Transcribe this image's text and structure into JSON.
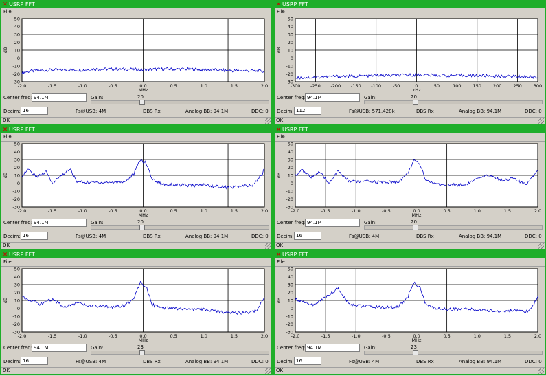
{
  "colors": {
    "titlebar": "#1fae2a",
    "trace": "#0000c8",
    "grid": "#000000"
  },
  "icons": {
    "close": "close-icon",
    "resize": "resize-grip-icon"
  },
  "windows": [
    {
      "title": "USRP FFT",
      "menu": "File",
      "center_freq_label": "Center freq:",
      "center_freq": "94.1M",
      "gain_label": "Gain:",
      "gain": "20",
      "decim_label": "Decim:",
      "decim": "16",
      "fs": "Fs@USB: 4M",
      "ddc_mode": "DBS Rx",
      "analog_bb": "Analog BB: 94.1M",
      "ddc": "DDC: 0",
      "status": "OK",
      "chart_data": {
        "type": "line",
        "xlabel": "MHz",
        "ylabel": "dB",
        "xlim": [
          -2.0,
          2.0
        ],
        "ylim": [
          -30,
          50
        ],
        "xticks": [
          "-2.0",
          "-1.5",
          "-1.0",
          "-0.5",
          "0.0",
          "0.5",
          "1.0",
          "1.5",
          "2.0"
        ],
        "yticks": [
          "50",
          "40",
          "30",
          "20",
          "10",
          "0",
          "-10",
          "-20",
          "-30"
        ],
        "x_gridlines": [
          0.0,
          1.4
        ],
        "y_gridlines": [
          30,
          10
        ],
        "series": [
          {
            "x": [
              -2.0,
              -1.8,
              -1.5,
              -1.2,
              -1.0,
              -0.8,
              -0.5,
              -0.2,
              0.0,
              0.2,
              0.5,
              0.8,
              1.0,
              1.2,
              1.5,
              1.8,
              2.0
            ],
            "values": [
              -18,
              -16,
              -15,
              -15,
              -15,
              -14,
              -14,
              -14,
              -15,
              -14,
              -14,
              -14,
              -15,
              -15,
              -16,
              -16,
              -17
            ]
          }
        ]
      }
    },
    {
      "title": "USRP FFT",
      "menu": "File",
      "center_freq_label": "Center freq:",
      "center_freq": "94.1M",
      "gain_label": "Gain:",
      "gain": "20",
      "decim_label": "Decim:",
      "decim": "112",
      "fs": "Fs@USB: 571.428k",
      "ddc_mode": "DBS Rx",
      "analog_bb": "Analog BB: 94.1M",
      "ddc": "DDC: 0",
      "status": "OK",
      "chart_data": {
        "type": "line",
        "xlabel": "kHz",
        "ylabel": "dB",
        "xlim": [
          -300,
          300
        ],
        "ylim": [
          -30,
          50
        ],
        "xticks": [
          "-300",
          "-250",
          "-200",
          "-150",
          "-100",
          "-50",
          "0",
          "50",
          "100",
          "150",
          "200",
          "250",
          "300"
        ],
        "yticks": [
          "50",
          "40",
          "30",
          "20",
          "10",
          "0",
          "-10",
          "-20",
          "-30"
        ],
        "x_gridlines": [
          -250,
          -100,
          0,
          150,
          250
        ],
        "y_gridlines": [
          30,
          10
        ],
        "series": [
          {
            "x": [
              -300,
              -250,
              -200,
              -150,
              -100,
              -50,
              0,
              50,
              100,
              150,
              200,
              250,
              300
            ],
            "values": [
              -25,
              -24,
              -23,
              -23,
              -22,
              -22,
              -21,
              -22,
              -22,
              -22,
              -23,
              -23,
              -24
            ]
          }
        ]
      }
    },
    {
      "title": "USRP FFT",
      "menu": "File",
      "center_freq_label": "Center freq:",
      "center_freq": "94.1M",
      "gain_label": "Gain:",
      "gain": "20",
      "decim_label": "Decim:",
      "decim": "16",
      "fs": "Fs@USB: 4M",
      "ddc_mode": "DBS Rx",
      "analog_bb": "Analog BB: 94.1M",
      "ddc": "DDC: 0",
      "status": "OK",
      "chart_data": {
        "type": "line",
        "xlabel": "MHz",
        "ylabel": "dB",
        "xlim": [
          -2.0,
          2.0
        ],
        "ylim": [
          -30,
          50
        ],
        "xticks": [
          "-2.0",
          "-1.5",
          "-1.0",
          "-0.5",
          "0.0",
          "0.5",
          "1.0",
          "1.5",
          "2.0"
        ],
        "yticks": [
          "50",
          "40",
          "30",
          "20",
          "10",
          "0",
          "-10",
          "-20",
          "-30"
        ],
        "x_gridlines": [
          0.0,
          1.4
        ],
        "y_gridlines": [
          30,
          10
        ],
        "series": [
          {
            "x": [
              -2.0,
              -1.9,
              -1.75,
              -1.6,
              -1.5,
              -1.3,
              -1.2,
              -1.1,
              -0.9,
              -0.7,
              -0.5,
              -0.3,
              -0.15,
              -0.05,
              0.05,
              0.15,
              0.3,
              0.5,
              0.8,
              1.0,
              1.2,
              1.4,
              1.6,
              1.8,
              1.9,
              2.0
            ],
            "values": [
              10,
              17,
              8,
              14,
              0,
              13,
              17,
              2,
              1,
              1,
              1,
              2,
              12,
              30,
              25,
              5,
              -1,
              -2,
              -3,
              -2,
              -4,
              -5,
              -4,
              -3,
              5,
              17
            ]
          }
        ]
      }
    },
    {
      "title": "USRP FFT",
      "menu": "File",
      "center_freq_label": "Center freq:",
      "center_freq": "94.1M",
      "gain_label": "Gain:",
      "gain": "20",
      "decim_label": "Decim:",
      "decim": "16",
      "fs": "Fs@USB: 4M",
      "ddc_mode": "DBS Rx",
      "analog_bb": "Analog BB: 94.1M",
      "ddc": "DDC: 0",
      "status": "OK",
      "chart_data": {
        "type": "line",
        "xlabel": "MHz",
        "ylabel": "dB",
        "xlim": [
          -2.0,
          2.0
        ],
        "ylim": [
          -30,
          50
        ],
        "xticks": [
          "-2.0",
          "-1.5",
          "-1.0",
          "-0.5",
          "0.0",
          "0.5",
          "1.0",
          "1.5",
          "2.0"
        ],
        "yticks": [
          "50",
          "40",
          "30",
          "20",
          "10",
          "0",
          "-10",
          "-20",
          "-30"
        ],
        "x_gridlines": [
          -1.5,
          -1.0,
          0.5
        ],
        "y_gridlines": [
          30,
          10
        ],
        "series": [
          {
            "x": [
              -2.0,
              -1.9,
              -1.75,
              -1.6,
              -1.45,
              -1.3,
              -1.1,
              -0.9,
              -0.7,
              -0.5,
              -0.3,
              -0.15,
              -0.05,
              0.05,
              0.15,
              0.3,
              0.5,
              0.8,
              1.0,
              1.2,
              1.4,
              1.6,
              1.8,
              1.9,
              2.0
            ],
            "values": [
              10,
              17,
              8,
              14,
              0,
              15,
              2,
              2,
              2,
              1,
              2,
              12,
              28,
              25,
              5,
              -1,
              -2,
              -2,
              5,
              10,
              4,
              6,
              -2,
              8,
              17
            ]
          }
        ]
      }
    },
    {
      "title": "USRP FFT",
      "menu": "File",
      "center_freq_label": "Center freq:",
      "center_freq": "94.1M",
      "gain_label": "Gain:",
      "gain": "23",
      "decim_label": "Decim:",
      "decim": "16",
      "fs": "Fs@USB: 4M",
      "ddc_mode": "DBS Rx",
      "analog_bb": "Analog BB: 94.1M",
      "ddc": "DDC: 0",
      "status": "OK",
      "chart_data": {
        "type": "line",
        "xlabel": "MHz",
        "ylabel": "dB",
        "xlim": [
          -2.0,
          2.0
        ],
        "ylim": [
          -30,
          50
        ],
        "xticks": [
          "-2.0",
          "-1.5",
          "-1.0",
          "-0.5",
          "0.0",
          "0.5",
          "1.0",
          "1.5",
          "2.0"
        ],
        "yticks": [
          "50",
          "40",
          "30",
          "20",
          "10",
          "0",
          "-10",
          "-20",
          "-30"
        ],
        "x_gridlines": [
          0.0,
          1.4
        ],
        "y_gridlines": [
          30,
          10
        ],
        "series": [
          {
            "x": [
              -2.0,
              -1.85,
              -1.7,
              -1.5,
              -1.3,
              -1.1,
              -0.9,
              -0.7,
              -0.5,
              -0.3,
              -0.15,
              -0.05,
              0.05,
              0.15,
              0.3,
              0.5,
              0.8,
              1.0,
              1.2,
              1.4,
              1.6,
              1.8,
              1.9,
              2.0
            ],
            "values": [
              15,
              10,
              5,
              12,
              2,
              7,
              3,
              2,
              2,
              3,
              14,
              33,
              28,
              5,
              0,
              0,
              -2,
              -1,
              -4,
              -5,
              -6,
              -5,
              0,
              15
            ]
          }
        ]
      }
    },
    {
      "title": "USRP FFT",
      "menu": "File",
      "center_freq_label": "Center freq:",
      "center_freq": "94.1M",
      "gain_label": "Gain:",
      "gain": "23",
      "decim_label": "Decim:",
      "decim": "16",
      "fs": "Fs@USB: 4M",
      "ddc_mode": "DBS Rx",
      "analog_bb": "Analog BB: 94.1M",
      "ddc": "DDC: 0",
      "status": "OK",
      "chart_data": {
        "type": "line",
        "xlabel": "MHz",
        "ylabel": "dB",
        "xlim": [
          -2.0,
          2.0
        ],
        "ylim": [
          -30,
          50
        ],
        "xticks": [
          "-2.0",
          "-1.5",
          "-1.0",
          "-0.5",
          "0.0",
          "0.5",
          "1.0",
          "1.5",
          "2.0"
        ],
        "yticks": [
          "50",
          "40",
          "30",
          "20",
          "10",
          "0",
          "-10",
          "-20",
          "-30"
        ],
        "x_gridlines": [
          -1.5,
          -1.0,
          0.5
        ],
        "y_gridlines": [
          30,
          10
        ],
        "series": [
          {
            "x": [
              -2.0,
              -1.85,
              -1.7,
              -1.5,
              -1.3,
              -1.1,
              -0.9,
              -0.7,
              -0.5,
              -0.3,
              -0.15,
              -0.05,
              0.05,
              0.15,
              0.3,
              0.5,
              0.8,
              1.0,
              1.2,
              1.4,
              1.6,
              1.8,
              1.9,
              2.0
            ],
            "values": [
              12,
              8,
              4,
              14,
              25,
              5,
              3,
              2,
              1,
              2,
              13,
              32,
              28,
              5,
              0,
              -1,
              -1,
              -2,
              -3,
              -4,
              -3,
              -5,
              0,
              15
            ]
          }
        ]
      }
    }
  ]
}
